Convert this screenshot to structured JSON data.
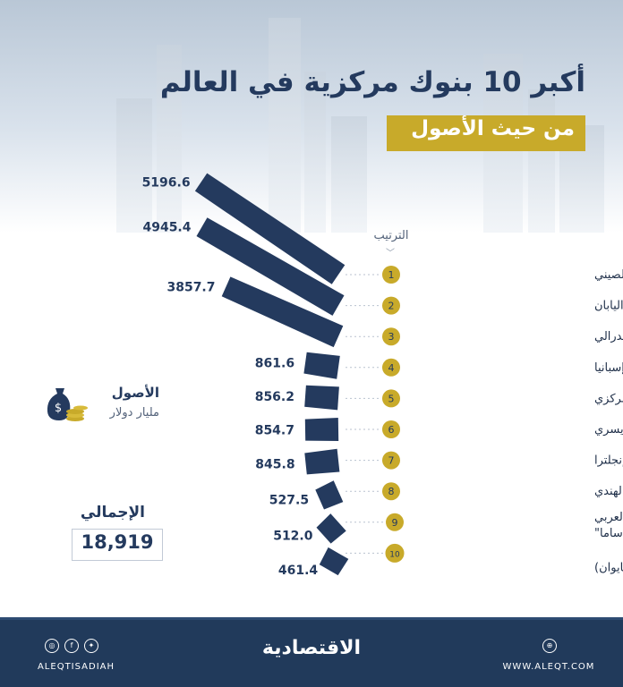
{
  "header": {
    "title": "أكبر 10 بنوك مركزية في العالم",
    "subtitle": "من حيث الأصول"
  },
  "chart_data": {
    "type": "bar",
    "rank_header": "الترتيب",
    "categories": [
      "بنك الشعب الصيني",
      "بنك اليابان",
      "البنك الاحتياطي الفيدرالي",
      "بنك إسبانيا",
      "بنك البرازيل المركزي",
      "البنك الوطني السويسري",
      "بنك إنجلترا",
      "البنك الاحتياطي الهندي",
      "مؤسسة النقد العربي السعودي \"ساما\"",
      "البنك المركزي الصيني (تايوان)"
    ],
    "ranks": [
      "1",
      "2",
      "3",
      "4",
      "5",
      "6",
      "7",
      "8",
      "9",
      "10"
    ],
    "values": [
      5196.6,
      4945.4,
      3857.7,
      861.6,
      856.2,
      854.7,
      845.8,
      527.5,
      512.0,
      461.4
    ],
    "value_labels": [
      "5196.6",
      "4945.4",
      "3857.7",
      "861.6",
      "856.2",
      "854.7",
      "845.8",
      "527.5",
      "512.0",
      "461.4"
    ],
    "legend": {
      "title": "الأصول",
      "unit": "مليار دولار"
    },
    "colors": {
      "bar": "#243a5e",
      "rank_badge": "#c8aa2a",
      "text": "#243a5e"
    }
  },
  "total": {
    "label": "الإجمالي",
    "value": "18,919"
  },
  "footer": {
    "handle": "ALEQTISADIAH",
    "brand": "الاقتصادية",
    "website": "WWW.ALEQT.COM",
    "social_icons": [
      "instagram-icon",
      "facebook-icon",
      "twitter-icon"
    ],
    "web_icon": "globe-icon",
    "background": "#213a5b"
  }
}
